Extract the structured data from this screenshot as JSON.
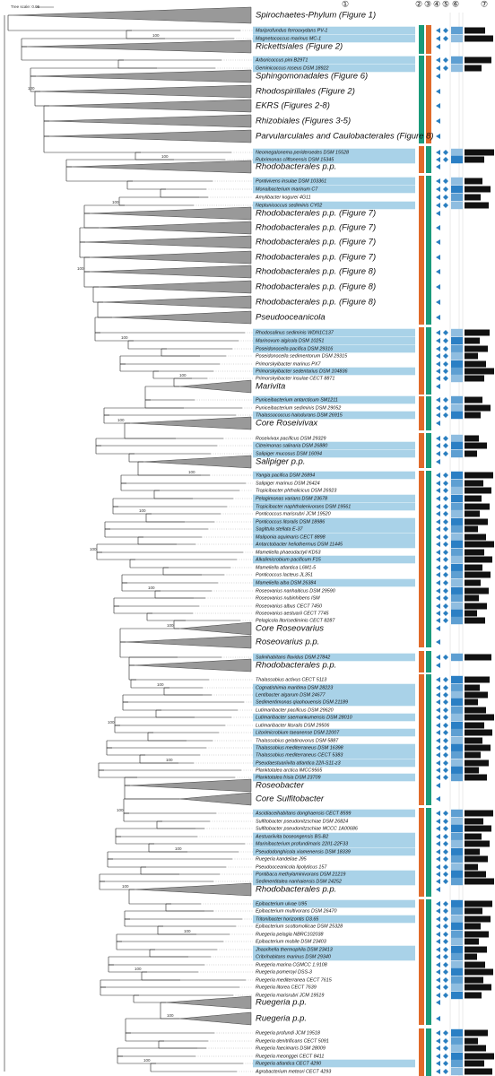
{
  "scale_label": "Tree scale: 0.05",
  "column_headers": [
    "①",
    "②",
    "③",
    "④",
    "⑤",
    "⑥",
    "⑦"
  ],
  "bootstrap": [
    100,
    100,
    100,
    100,
    100,
    100,
    100,
    100,
    100,
    100,
    100,
    100,
    100,
    100,
    100,
    100,
    100,
    100,
    100,
    100,
    100,
    100,
    100,
    100
  ],
  "rows": [
    {
      "label": "Spirochaetes-Phylum (Figure 1)",
      "collapsed": true
    },
    {
      "label": "Mariprofundus ferrooxydans PV-1",
      "highlighted": true
    },
    {
      "label": "Magnetococcus marinus MC-1",
      "highlighted": true
    },
    {
      "label": "Rickettsiales (Figure 2)",
      "collapsed": true
    },
    {
      "label": "Arboricoccus pini B29T1",
      "highlighted": true
    },
    {
      "label": "Geminicoccus roseus DSM 18922",
      "highlighted": true
    },
    {
      "label": "Sphingomonadales (Figure 6)",
      "collapsed": true
    },
    {
      "label": "Rhodospirillales (Figure 2)",
      "collapsed": true
    },
    {
      "label": "EKRS (Figures 2-8)",
      "collapsed": true
    },
    {
      "label": "Rhizobiales (Figures 3-5)",
      "collapsed": true
    },
    {
      "label": "Parvularculales and Caulobacterales (Figure 8)",
      "collapsed": true
    },
    {
      "label": "Neomegalonema perideroedes DSM 15528",
      "highlighted": true
    },
    {
      "label": "Rubrimonas cliftonensis DSM 15345",
      "highlighted": true
    },
    {
      "label": "Rhodobacterales p.p.",
      "collapsed": true
    },
    {
      "label": "Pontivivens insulae DSM 103361",
      "highlighted": true
    },
    {
      "label": "Monaibacterium marinum C7",
      "highlighted": true
    },
    {
      "label": "Amylibacter kogurei 4G11"
    },
    {
      "label": "Neptunicoccus sediminis CY02",
      "highlighted": true
    },
    {
      "label": "Rhodobacterales p.p. (Figure 7)",
      "collapsed": true
    },
    {
      "label": "Rhodobacterales p.p. (Figure 7)",
      "collapsed": true
    },
    {
      "label": "Rhodobacterales p.p. (Figure 7)",
      "collapsed": true
    },
    {
      "label": "Rhodobacterales p.p. (Figure 7)",
      "collapsed": true
    },
    {
      "label": "Rhodobacterales p.p. (Figure 8)",
      "collapsed": true
    },
    {
      "label": "Rhodobacterales p.p. (Figure 8)",
      "collapsed": true
    },
    {
      "label": "Rhodobacterales p.p. (Figure 8)",
      "collapsed": true
    },
    {
      "label": "Pseudooceanicola",
      "collapsed": true
    },
    {
      "label": "Rhodosalinus sediminis WDN1C137",
      "highlighted": true
    },
    {
      "label": "Marinovum algicola DSM 10251",
      "highlighted": true
    },
    {
      "label": "Poseidonocella pacifica DSM 29316",
      "highlighted": true
    },
    {
      "label": "Poseidonocella sedimentorum DSM 29315"
    },
    {
      "label": "Primorskyibacter marinus PX7"
    },
    {
      "label": "Primorskyibacter sedentarius DSM 104836",
      "highlighted": true
    },
    {
      "label": "Primorskyibacter insulae CECT 8871"
    },
    {
      "label": "Marivita",
      "collapsed": true
    },
    {
      "label": "Puniceibacterium antarcticum SM1211",
      "highlighted": true
    },
    {
      "label": "Puniceibacterium sediminis DSM 29052"
    },
    {
      "label": "Thalassococcus halodurans DSM 26915",
      "highlighted": true
    },
    {
      "label": "Core Roseivivax",
      "collapsed": true
    },
    {
      "label": "Roseivivax pacificus DSM 29329"
    },
    {
      "label": "Citreimonas salinaria DSM 26880",
      "highlighted": true
    },
    {
      "label": "Salipiger mucosus DSM 16094",
      "highlighted": true
    },
    {
      "label": "Salipiger p.p.",
      "collapsed": true
    },
    {
      "label": "Yangia pacifica DSM 26894",
      "highlighted": true
    },
    {
      "label": "Salipiger marinus DSM 26424"
    },
    {
      "label": "Tropicibacter phthalicicus DSM 26923"
    },
    {
      "label": "Pelagimonas varians DSM 23678",
      "highlighted": true
    },
    {
      "label": "Tropicibacter naphthalenivorans DSM 19561",
      "highlighted": true
    },
    {
      "label": "Ponticoccus marisrubri JCM 19520"
    },
    {
      "label": "Ponticoccus litoralis DSM 18986",
      "highlighted": true
    },
    {
      "label": "Sagittula stellata E-37",
      "highlighted": true
    },
    {
      "label": "Maliponia aquimaris CECT 8898",
      "highlighted": true
    },
    {
      "label": "Antarctobacter heliothermus DSM 11445",
      "highlighted": true
    },
    {
      "label": "Mameliella phaeodactyli KD53"
    },
    {
      "label": "Alkalimicrobium pacificum F15",
      "highlighted": true
    },
    {
      "label": "Mameliella atlantica L6M1-5"
    },
    {
      "label": "Ponticoccus lacteus JL351"
    },
    {
      "label": "Mameliella alba DSM 26384",
      "highlighted": true
    },
    {
      "label": "Roseovarius nanhaiticus DSM 29590"
    },
    {
      "label": "Roseovarius nubinhibens ISM"
    },
    {
      "label": "Roseovarius albus CECT 7450"
    },
    {
      "label": "Roseovarius aestuarii CECT 7745"
    },
    {
      "label": "Pelagicola litorisediminis CECT 8287"
    },
    {
      "label": "Core Roseovarius",
      "collapsed": true
    },
    {
      "label": "Roseovarius p.p.",
      "collapsed": true
    },
    {
      "label": "Salinihabitans flavidus DSM 27842",
      "highlighted": true
    },
    {
      "label": "Rhodobacterales p.p.",
      "collapsed": true
    },
    {
      "label": "Thalassobius activus CECT 5113"
    },
    {
      "label": "Cognatishimia maritima DSM 28223",
      "highlighted": true
    },
    {
      "label": "Lentibacter algarum DSM 24677",
      "highlighted": true
    },
    {
      "label": "Sedimentimonas qiaohouensis DSM 21189",
      "highlighted": true
    },
    {
      "label": "Lutimaribacter pacificus DSM 29620"
    },
    {
      "label": "Lutimaribacter saemankumensis DSM 28010",
      "highlighted": true
    },
    {
      "label": "Lutimaribacter litoralis DSM 29506"
    },
    {
      "label": "Litorimicrobium taeanense DSM 22007",
      "highlighted": true
    },
    {
      "label": "Thalassobius gelatinovorus DSM 5887"
    },
    {
      "label": "Thalassobius mediterraneus DSM 16398",
      "highlighted": true
    },
    {
      "label": "Thalassobius mediterraneus CECT 5383",
      "highlighted": true
    },
    {
      "label": "Pseudaestuariivita atlantica 22II-S11-z3",
      "highlighted": true
    },
    {
      "label": "Planktotalea arctica IMCC9565"
    },
    {
      "label": "Planktotalea frisia DSM 23709",
      "highlighted": true
    },
    {
      "label": "Roseobacter",
      "collapsed": true
    },
    {
      "label": "Core Sulfitobacter",
      "collapsed": true
    },
    {
      "label": "Ascidiaceihabitans donghaensis CECT 8599",
      "highlighted": true
    },
    {
      "label": "Sulfitobacter pseudonitzschiae DSM 26824"
    },
    {
      "label": "Sulfitobacter pseudonitzschiae MCCC 1A00686"
    },
    {
      "label": "Aestuariivita boseongensis BS-B2",
      "highlighted": true
    },
    {
      "label": "Marinibacterium profundimaris 22II1-22F33",
      "highlighted": true
    },
    {
      "label": "Pseudodonghicola xiamenensis DSM 18339",
      "highlighted": true
    },
    {
      "label": "Ruegeria kandeliae J95"
    },
    {
      "label": "Pseudooceanicola lipolyticus 157"
    },
    {
      "label": "Pontibaca methylaminivorans DSM 21219",
      "highlighted": true
    },
    {
      "label": "Sedimentitalea nanhaiensis DSM 24252",
      "highlighted": true
    },
    {
      "label": "Rhodobacterales p.p.",
      "collapsed": true
    },
    {
      "label": "Epibacterium ulvae U95",
      "highlighted": true
    },
    {
      "label": "Epibacterium multivorans DSM 26470"
    },
    {
      "label": "Tritonibacter horizontis O3.65",
      "highlighted": true
    },
    {
      "label": "Epibacterium scottomollicae DSM 25328"
    },
    {
      "label": "Ruegeria pelagia NBRC102038"
    },
    {
      "label": "Epibacterium mobile DSM 23403"
    },
    {
      "label": "Jhaorihella thermophila DSM 23413",
      "highlighted": true
    },
    {
      "label": "Cribrihabitans marinus DSM 29340",
      "highlighted": true
    },
    {
      "label": "Ruegeria marina CGMCC 1.9108"
    },
    {
      "label": "Ruegeria pomeroyi DSS-3"
    },
    {
      "label": "Ruegeria mediterranea CECT 7615"
    },
    {
      "label": "Ruegeria litorea CECT 7639"
    },
    {
      "label": "Ruegeria marisrubri JCM 19519"
    },
    {
      "label": "Ruegeria p.p.",
      "collapsed": true
    },
    {
      "label": "Ruegeria p.p.",
      "collapsed": true
    },
    {
      "label": "Ruegeria profundi JCM 19518"
    },
    {
      "label": "Ruegeria denitrificans CECT 5091"
    },
    {
      "label": "Ruegeria faecimaris DSM 28009"
    },
    {
      "label": "Ruegeria meonggei CECT 8411"
    },
    {
      "label": "Ruegeria atlantica CECT 4290",
      "highlighted": true
    },
    {
      "label": "Agrobacterium meteori CECT 4293"
    }
  ]
}
